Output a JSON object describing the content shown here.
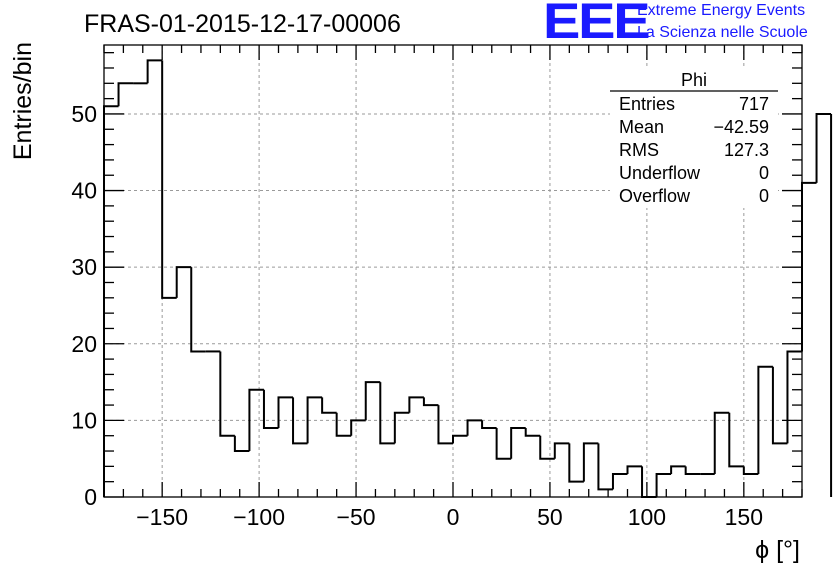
{
  "title": "FRAS-01-2015-12-17-00006",
  "logo": {
    "mark": "EEE",
    "line1": "Extreme Energy Events",
    "line2": "La Scienza nelle Scuole",
    "color": "#1a1aff"
  },
  "stats": {
    "name": "Phi",
    "rows": [
      {
        "label": "Entries",
        "value": "717"
      },
      {
        "label": "Mean",
        "value": "−42.59"
      },
      {
        "label": "RMS",
        "value": "127.3"
      },
      {
        "label": "Underflow",
        "value": "0"
      },
      {
        "label": "Overflow",
        "value": "0"
      }
    ]
  },
  "chart_data": {
    "type": "bar",
    "histogram": "step",
    "xlabel": "ϕ [°]",
    "ylabel": "Entries/bin",
    "xlim": [
      -180,
      180
    ],
    "ylim": [
      0,
      59
    ],
    "xticks": [
      -150,
      -100,
      -50,
      0,
      50,
      100,
      150
    ],
    "xtick_labels": [
      "−150",
      "−100",
      "−50",
      "0",
      "50",
      "100",
      "150"
    ],
    "yticks": [
      0,
      10,
      20,
      30,
      40,
      50
    ],
    "grid": true,
    "bin_edges_start": -180,
    "bin_width": 7.5,
    "values": [
      51,
      54,
      54,
      57,
      26,
      30,
      19,
      19,
      8,
      6,
      14,
      9,
      13,
      7,
      13,
      11,
      8,
      10,
      15,
      7,
      11,
      13,
      12,
      7,
      8,
      10,
      9,
      5,
      9,
      8,
      5,
      7,
      2,
      7,
      1,
      3,
      4,
      0,
      3,
      4,
      3,
      3,
      11,
      4,
      3,
      17,
      7,
      19,
      41,
      50
    ]
  }
}
